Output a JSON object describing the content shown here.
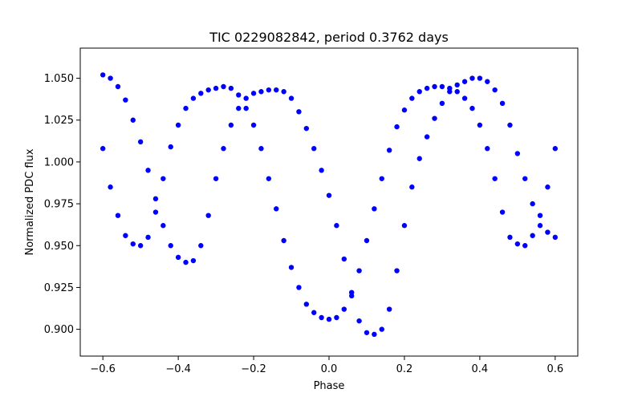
{
  "chart_data": {
    "type": "scatter",
    "title": "TIC 0229082842, period 0.3762 days",
    "xlabel": "Phase",
    "ylabel": "Normalized PDC flux",
    "xlim": [
      -0.66,
      0.66
    ],
    "ylim": [
      0.884,
      1.068
    ],
    "x_ticks": [
      -0.6,
      -0.4,
      -0.2,
      0.0,
      0.2,
      0.4,
      0.6
    ],
    "x_tick_labels": [
      "−0.6",
      "−0.4",
      "−0.2",
      "0.0",
      "0.2",
      "0.4",
      "0.6"
    ],
    "y_ticks": [
      0.9,
      0.925,
      0.95,
      0.975,
      1.0,
      1.025,
      1.05
    ],
    "y_tick_labels": [
      "0.900",
      "0.925",
      "0.950",
      "0.975",
      "1.000",
      "1.025",
      "1.050"
    ],
    "grid": false,
    "point_color": "#0000ff",
    "series": [
      {
        "x": [
          -0.6,
          -0.58,
          -0.56,
          -0.54,
          -0.52,
          -0.5,
          -0.48,
          -0.46,
          -0.44,
          -0.42,
          -0.4,
          -0.38,
          -0.36,
          -0.34,
          -0.32,
          -0.3,
          -0.28,
          -0.26,
          -0.24,
          -0.22,
          -0.2,
          -0.18,
          -0.16,
          -0.14,
          -0.12,
          -0.1,
          -0.08,
          -0.06,
          -0.04,
          -0.02,
          0.0,
          0.02,
          0.04,
          0.06,
          0.08,
          0.1,
          0.12,
          0.14,
          0.16,
          0.18,
          0.2,
          0.22,
          0.24,
          0.26,
          0.28,
          0.3,
          0.32,
          0.34,
          0.36,
          0.38,
          0.4,
          0.42,
          0.44,
          0.46,
          0.48,
          0.5,
          0.52,
          0.54,
          0.56,
          0.58,
          0.6
        ],
        "y": [
          1.008,
          0.985,
          0.968,
          0.956,
          0.951,
          0.95,
          0.955,
          0.97,
          0.99,
          1.009,
          1.022,
          1.032,
          1.038,
          1.041,
          1.043,
          1.044,
          1.045,
          1.044,
          1.04,
          1.032,
          1.022,
          1.008,
          0.99,
          0.972,
          0.953,
          0.937,
          0.925,
          0.915,
          0.91,
          0.907,
          0.906,
          0.907,
          0.912,
          0.922,
          0.935,
          0.953,
          0.972,
          0.99,
          1.007,
          1.021,
          1.031,
          1.038,
          1.042,
          1.044,
          1.045,
          1.045,
          1.044,
          1.042,
          1.038,
          1.032,
          1.022,
          1.008,
          0.99,
          0.97,
          0.955,
          0.951,
          0.95,
          0.956,
          0.968,
          0.985,
          1.008
        ]
      },
      {
        "x": [
          -0.6,
          -0.58,
          -0.56,
          -0.54,
          -0.52,
          -0.5,
          -0.48,
          -0.46,
          -0.44,
          -0.42,
          -0.4,
          -0.38,
          -0.36,
          -0.34,
          -0.32,
          -0.3,
          -0.28,
          -0.26,
          -0.24,
          -0.22,
          -0.2,
          -0.18,
          -0.16,
          -0.14,
          -0.12,
          -0.1,
          -0.08,
          -0.06,
          -0.04,
          -0.02,
          0.0,
          0.02,
          0.04,
          0.06,
          0.08,
          0.1,
          0.12,
          0.14,
          0.16,
          0.18,
          0.2,
          0.22,
          0.24,
          0.26,
          0.28,
          0.3,
          0.32,
          0.34,
          0.36,
          0.38,
          0.4,
          0.42,
          0.44,
          0.46,
          0.48,
          0.5,
          0.52,
          0.54,
          0.56,
          0.58,
          0.6
        ],
        "y": [
          1.052,
          1.05,
          1.045,
          1.037,
          1.025,
          1.012,
          0.995,
          0.978,
          0.962,
          0.95,
          0.943,
          0.94,
          0.941,
          0.95,
          0.968,
          0.99,
          1.008,
          1.022,
          1.032,
          1.038,
          1.041,
          1.042,
          1.043,
          1.043,
          1.042,
          1.038,
          1.03,
          1.02,
          1.008,
          0.995,
          0.98,
          0.962,
          0.942,
          0.92,
          0.905,
          0.898,
          0.897,
          0.9,
          0.912,
          0.935,
          0.962,
          0.985,
          1.002,
          1.015,
          1.026,
          1.035,
          1.042,
          1.046,
          1.048,
          1.05,
          1.05,
          1.048,
          1.043,
          1.035,
          1.022,
          1.005,
          0.99,
          0.975,
          0.962,
          0.958,
          0.955
        ]
      }
    ]
  }
}
